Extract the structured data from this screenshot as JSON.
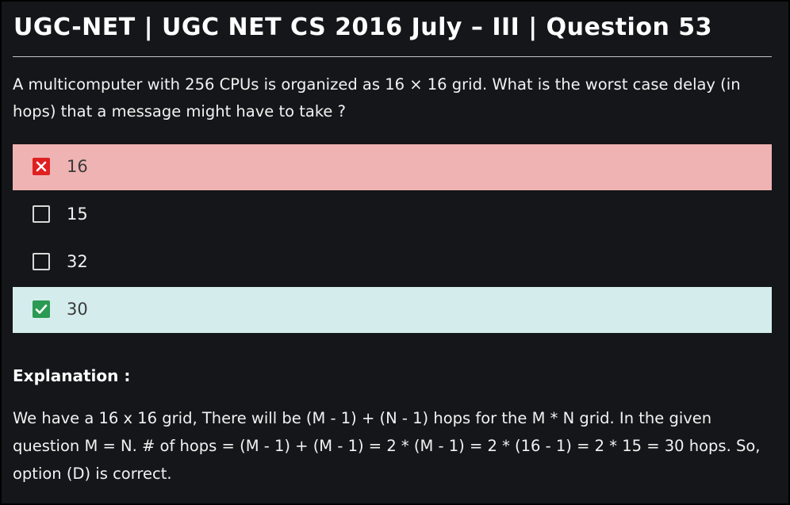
{
  "page": {
    "title": "UGC-NET | UGC NET CS 2016 July – III | Question 53"
  },
  "question": {
    "text": "A multicomputer with 256 CPUs is organized as 16 × 16 grid. What is the worst case delay (in hops) that a message might have to take ?"
  },
  "options": [
    {
      "label": "16",
      "state": "wrong",
      "icon": "cross-icon",
      "highlight_color": "#efb3b3"
    },
    {
      "label": "15",
      "state": "unselected",
      "icon": "empty-checkbox-icon"
    },
    {
      "label": "32",
      "state": "unselected",
      "icon": "empty-checkbox-icon"
    },
    {
      "label": "30",
      "state": "correct",
      "icon": "check-icon",
      "highlight_color": "#d4ecec"
    }
  ],
  "explanation": {
    "heading": "Explanation :",
    "text": "We have a 16 x 16 grid, There will be (M - 1) + (N - 1) hops for the M * N grid. In the given question M = N. # of hops = (M - 1) + (M - 1) = 2 * (M - 1) = 2 * (16 - 1) = 2 * 15 = 30 hops. So, option (D) is correct."
  },
  "colors": {
    "background": "#151619",
    "wrong_mark": "#e02020",
    "correct_mark": "#2b9a52"
  }
}
